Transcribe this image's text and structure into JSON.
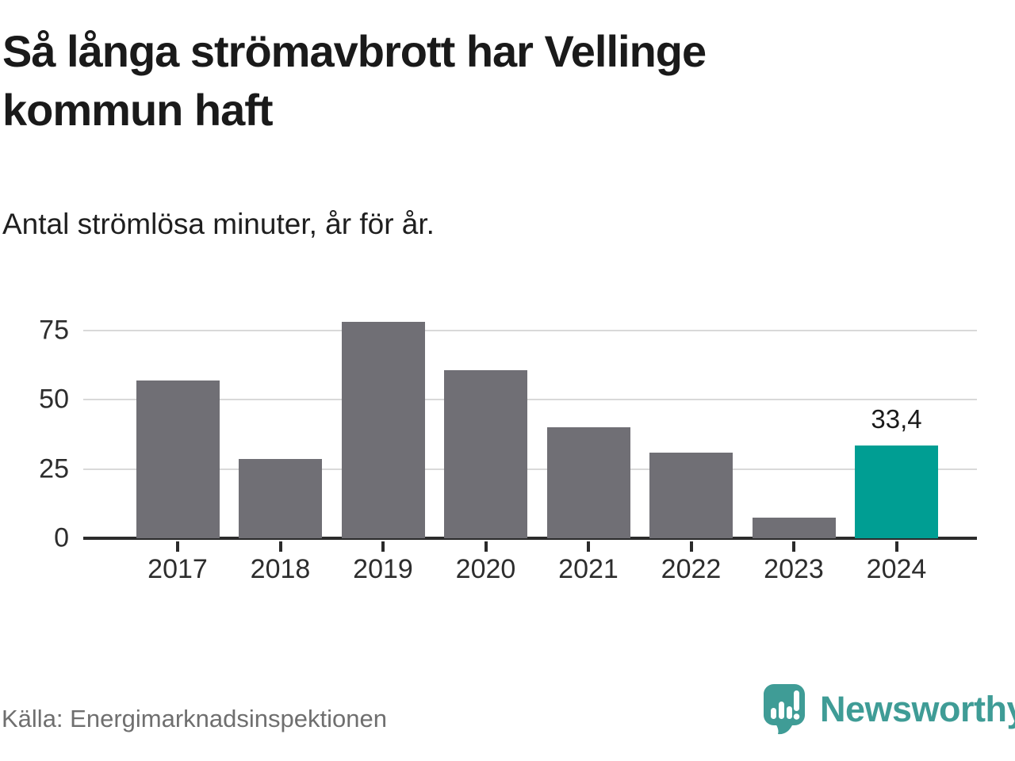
{
  "title": "Så långa strömavbrott har Vellinge kommun haft",
  "subtitle": "Antal strömlösa minuter, år för år.",
  "source": "Källa: Energimarknadsinspektionen",
  "branding": {
    "name": "Newsworthy"
  },
  "colors": {
    "bar_default": "#706f75",
    "bar_highlight": "#009e93",
    "brand_teal": "#3f9c96",
    "grid": "#d9d9d9",
    "axis": "#2b2b2b"
  },
  "chart_data": {
    "type": "bar",
    "categories": [
      "2017",
      "2018",
      "2019",
      "2020",
      "2021",
      "2022",
      "2023",
      "2024"
    ],
    "values": [
      57,
      28.5,
      78,
      60.5,
      40,
      31,
      7.5,
      33.4
    ],
    "highlight_index": 7,
    "annotation": {
      "index": 7,
      "label": "33,4"
    },
    "yticks": [
      0,
      25,
      50,
      75
    ],
    "ylim": [
      0,
      80
    ],
    "title": "Så långa strömavbrott har Vellinge kommun haft",
    "xlabel": "",
    "ylabel": "",
    "grid": true,
    "legend": false
  }
}
